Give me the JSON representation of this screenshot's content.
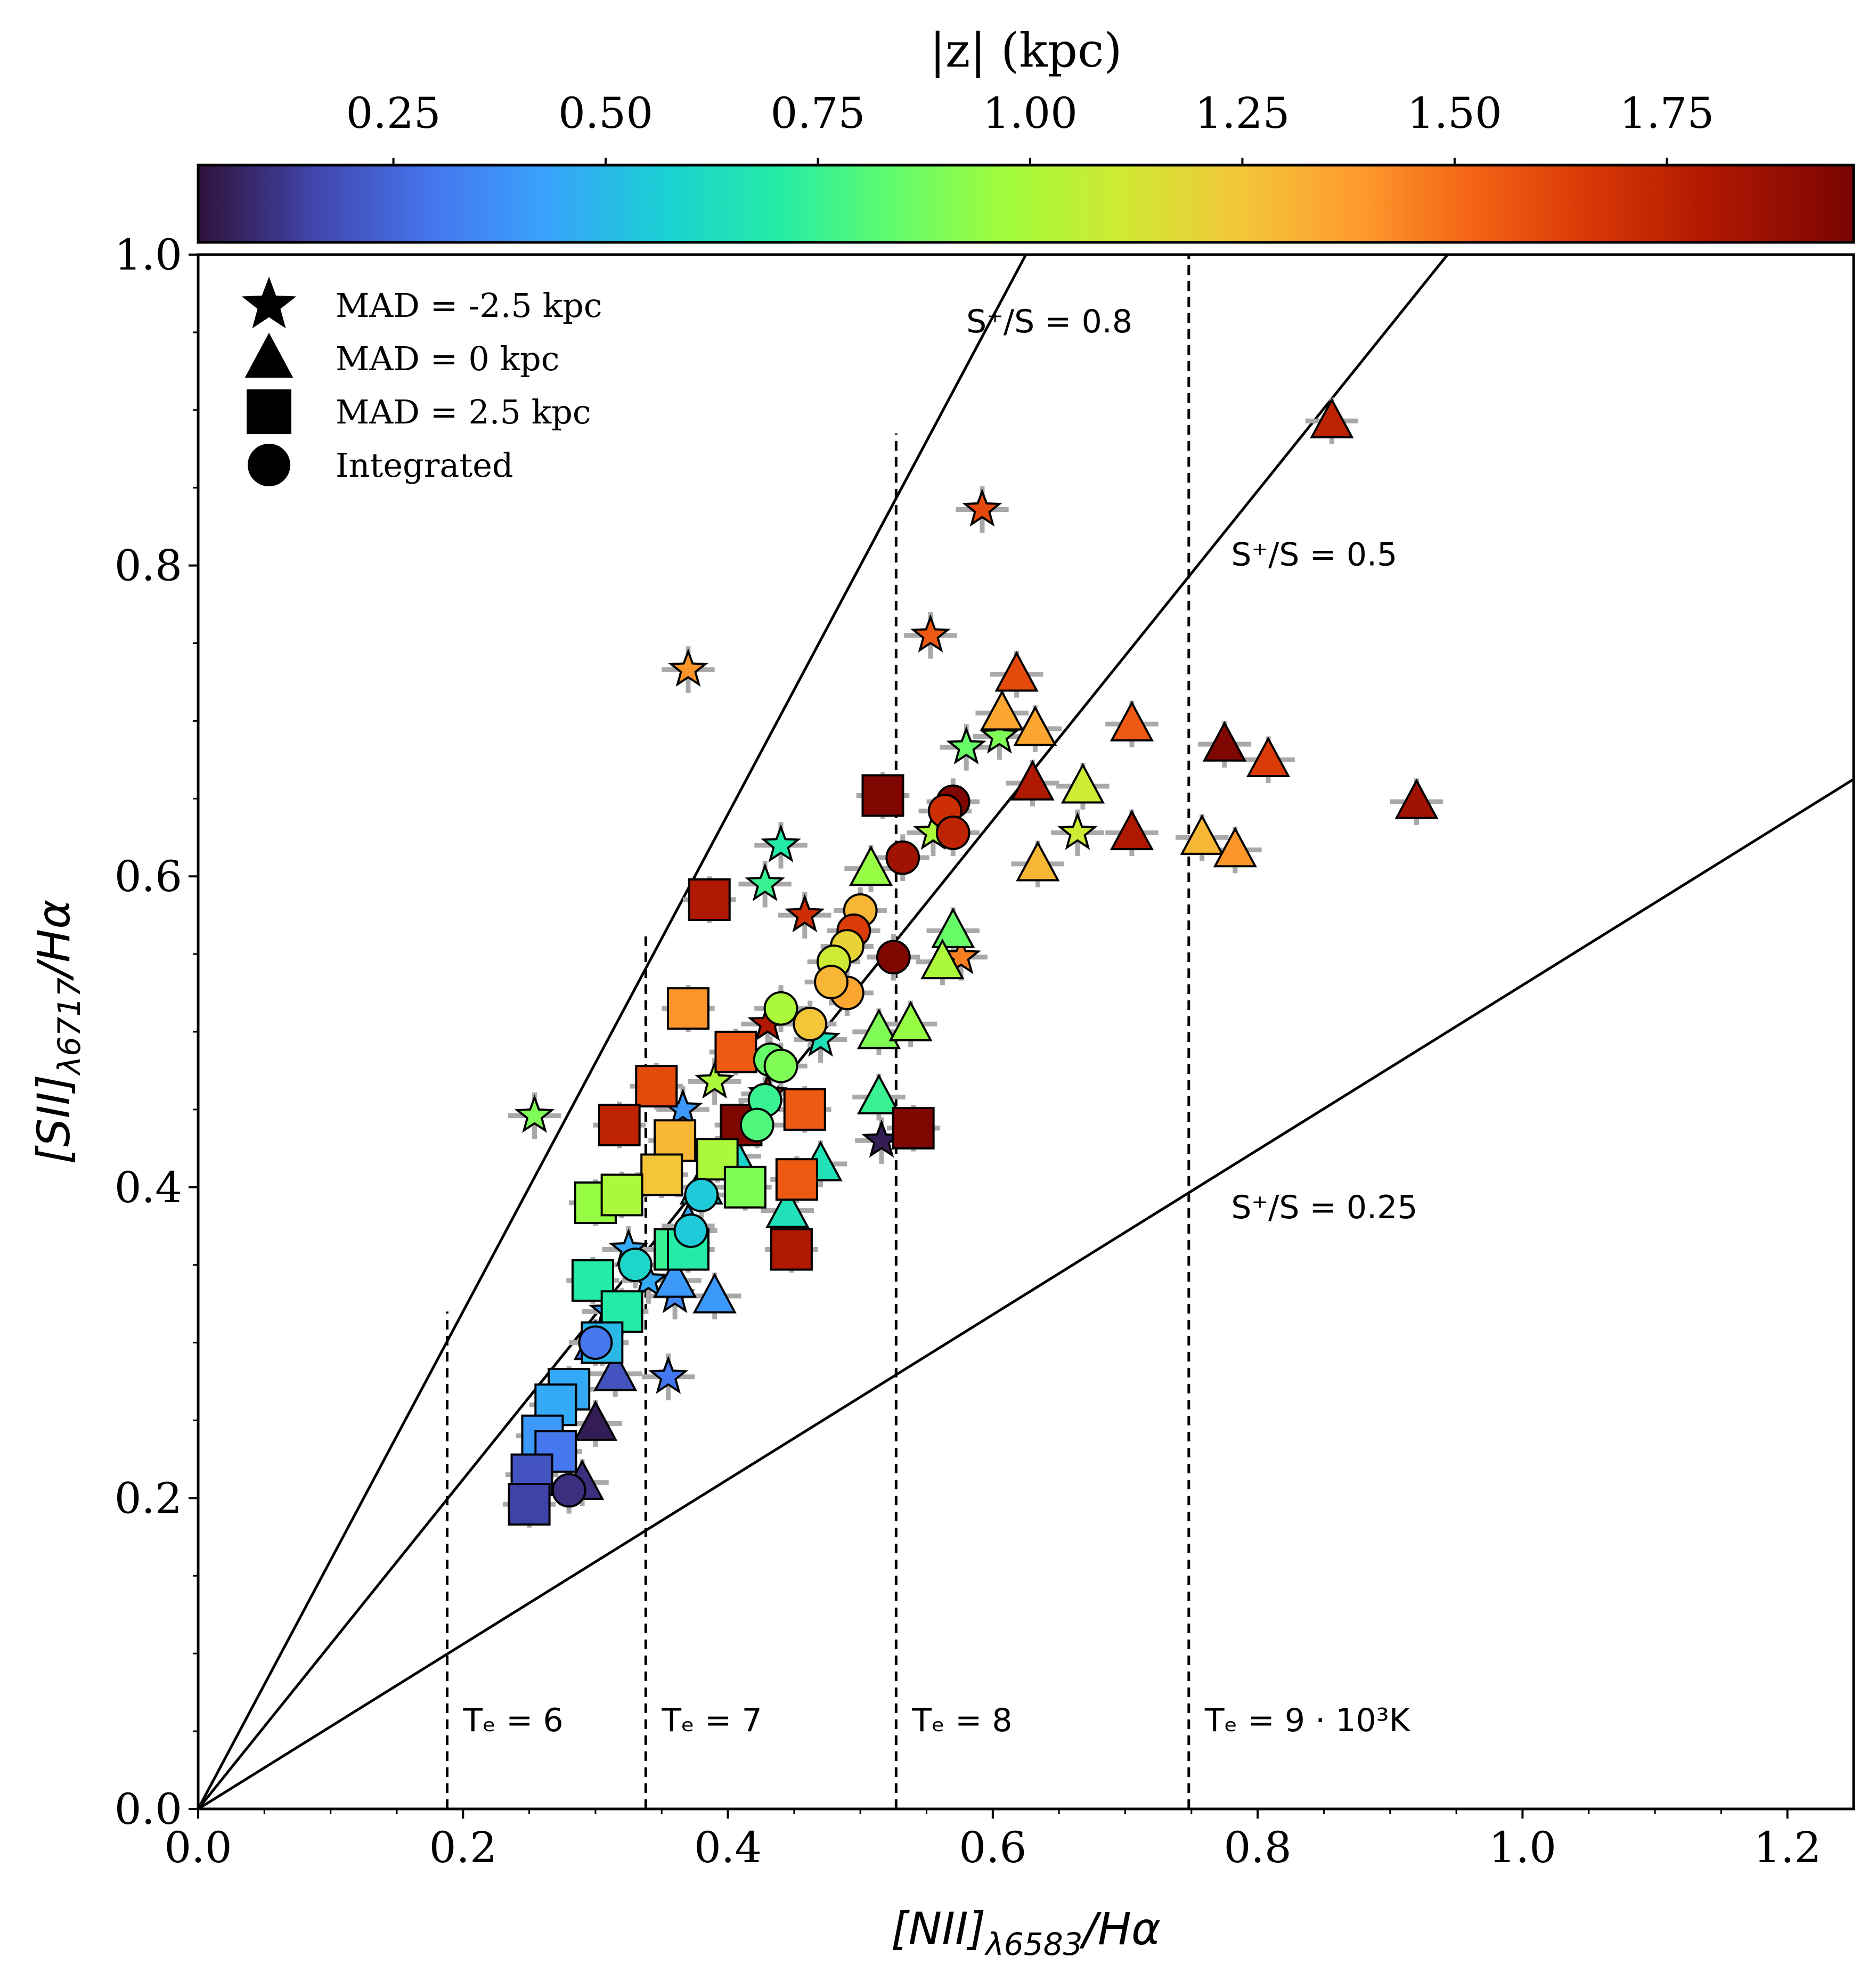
{
  "chart_data": {
    "type": "scatter",
    "xlabel_main": "[NII]",
    "xlabel_sub": "λ6583",
    "xlabel_tail": "/Hα",
    "ylabel_main": "[SII]",
    "ylabel_sub": "λ6717",
    "ylabel_tail": "/Hα",
    "xlim": [
      0.0,
      1.25
    ],
    "ylim": [
      0.0,
      1.0
    ],
    "xticks": [
      "0.0",
      "0.2",
      "0.4",
      "0.6",
      "0.8",
      "1.0",
      "1.2"
    ],
    "xtick_values": [
      0.0,
      0.2,
      0.4,
      0.6,
      0.8,
      1.0,
      1.2
    ],
    "yticks": [
      "0.0",
      "0.2",
      "0.4",
      "0.6",
      "0.8",
      "1.0"
    ],
    "ytick_values": [
      0.0,
      0.2,
      0.4,
      0.6,
      0.8,
      1.0
    ],
    "colorbar": {
      "label": "|z| (kpc)",
      "range": [
        0.02,
        1.97
      ],
      "tick_values": [
        0.25,
        0.5,
        0.75,
        1.0,
        1.25,
        1.5,
        1.75
      ],
      "ticks": [
        "0.25",
        "0.50",
        "0.75",
        "1.00",
        "1.25",
        "1.50",
        "1.75"
      ],
      "colormap": "turbo"
    },
    "legend": {
      "placement": "top-left",
      "entries": [
        {
          "marker": "star",
          "label": "MAD = -2.5 kpc"
        },
        {
          "marker": "triangle",
          "label": "MAD = 0 kpc"
        },
        {
          "marker": "square",
          "label": "MAD = 2.5 kpc"
        },
        {
          "marker": "circle",
          "label": "Integrated"
        }
      ]
    },
    "ratio_lines": [
      {
        "slope": 1.6,
        "label": "S⁺/S = 0.8",
        "label_at": [
          0.58,
          0.95
        ]
      },
      {
        "slope": 1.06,
        "label": "S⁺/S = 0.5",
        "label_at": [
          0.78,
          0.8
        ]
      },
      {
        "slope": 0.53,
        "label": "S⁺/S = 0.25",
        "label_at": [
          0.78,
          0.38
        ]
      }
    ],
    "temperature_lines": [
      {
        "x": 0.188,
        "ymax": 0.32,
        "label": "Tₑ = 6"
      },
      {
        "x": 0.338,
        "ymax": 0.565,
        "label": "Tₑ = 7"
      },
      {
        "x": 0.527,
        "ymax": 0.885,
        "label": "Tₑ = 8"
      },
      {
        "x": 0.748,
        "ymax": 1.0,
        "label": "Tₑ = 9 · 10³K"
      }
    ],
    "series": [
      {
        "marker": "star",
        "points": [
          [
            0.37,
            0.733,
            1.4
          ],
          [
            0.592,
            0.836,
            1.6
          ],
          [
            0.553,
            0.755,
            1.55
          ],
          [
            0.254,
            0.446,
            0.9
          ],
          [
            0.44,
            0.62,
            0.7
          ],
          [
            0.428,
            0.595,
            0.75
          ],
          [
            0.458,
            0.575,
            1.7
          ],
          [
            0.58,
            0.683,
            0.85
          ],
          [
            0.605,
            0.69,
            0.9
          ],
          [
            0.555,
            0.628,
            1.0
          ],
          [
            0.664,
            0.628,
            1.1
          ],
          [
            0.576,
            0.548,
            1.45
          ],
          [
            0.43,
            0.505,
            1.8
          ],
          [
            0.39,
            0.468,
            1.0
          ],
          [
            0.43,
            0.46,
            1.9
          ],
          [
            0.516,
            0.43,
            0.05
          ],
          [
            0.366,
            0.45,
            0.4
          ],
          [
            0.325,
            0.36,
            0.45
          ],
          [
            0.355,
            0.278,
            0.3
          ],
          [
            0.36,
            0.33,
            0.35
          ],
          [
            0.34,
            0.34,
            0.45
          ],
          [
            0.47,
            0.495,
            0.65
          ],
          [
            0.31,
            0.32,
            0.4
          ]
        ]
      },
      {
        "marker": "triangle",
        "points": [
          [
            0.856,
            0.893,
            1.75
          ],
          [
            0.618,
            0.73,
            1.6
          ],
          [
            0.607,
            0.705,
            1.35
          ],
          [
            0.632,
            0.695,
            1.35
          ],
          [
            0.705,
            0.698,
            1.55
          ],
          [
            0.775,
            0.685,
            1.95
          ],
          [
            0.808,
            0.675,
            1.65
          ],
          [
            0.92,
            0.648,
            1.85
          ],
          [
            0.63,
            0.66,
            1.8
          ],
          [
            0.668,
            0.658,
            1.1
          ],
          [
            0.705,
            0.628,
            1.8
          ],
          [
            0.758,
            0.625,
            1.3
          ],
          [
            0.783,
            0.617,
            1.4
          ],
          [
            0.634,
            0.608,
            1.3
          ],
          [
            0.508,
            0.605,
            0.95
          ],
          [
            0.57,
            0.565,
            0.85
          ],
          [
            0.562,
            0.545,
            1.0
          ],
          [
            0.514,
            0.5,
            0.9
          ],
          [
            0.538,
            0.505,
            0.95
          ],
          [
            0.514,
            0.458,
            0.75
          ],
          [
            0.47,
            0.415,
            0.65
          ],
          [
            0.445,
            0.385,
            0.65
          ],
          [
            0.39,
            0.33,
            0.4
          ],
          [
            0.37,
            0.375,
            0.45
          ],
          [
            0.36,
            0.34,
            0.4
          ],
          [
            0.3,
            0.248,
            0.05
          ],
          [
            0.29,
            0.21,
            0.1
          ],
          [
            0.3,
            0.3,
            0.3
          ],
          [
            0.315,
            0.28,
            0.2
          ],
          [
            0.405,
            0.42,
            0.6
          ],
          [
            0.38,
            0.4,
            0.55
          ]
        ]
      },
      {
        "marker": "square",
        "points": [
          [
            0.517,
            0.652,
            1.95
          ],
          [
            0.386,
            0.585,
            1.8
          ],
          [
            0.37,
            0.515,
            1.4
          ],
          [
            0.406,
            0.487,
            1.55
          ],
          [
            0.346,
            0.465,
            1.6
          ],
          [
            0.318,
            0.44,
            1.75
          ],
          [
            0.458,
            0.45,
            1.55
          ],
          [
            0.41,
            0.44,
            1.95
          ],
          [
            0.54,
            0.438,
            1.95
          ],
          [
            0.36,
            0.43,
            1.3
          ],
          [
            0.35,
            0.408,
            1.25
          ],
          [
            0.392,
            0.418,
            1.0
          ],
          [
            0.413,
            0.4,
            0.9
          ],
          [
            0.452,
            0.405,
            1.55
          ],
          [
            0.3,
            0.39,
            0.95
          ],
          [
            0.32,
            0.395,
            1.0
          ],
          [
            0.36,
            0.36,
            0.75
          ],
          [
            0.448,
            0.36,
            1.8
          ],
          [
            0.37,
            0.36,
            0.7
          ],
          [
            0.298,
            0.34,
            0.7
          ],
          [
            0.32,
            0.32,
            0.7
          ],
          [
            0.305,
            0.3,
            0.5
          ],
          [
            0.28,
            0.27,
            0.45
          ],
          [
            0.27,
            0.26,
            0.45
          ],
          [
            0.26,
            0.24,
            0.4
          ],
          [
            0.27,
            0.23,
            0.3
          ],
          [
            0.252,
            0.215,
            0.2
          ],
          [
            0.25,
            0.196,
            0.15
          ]
        ]
      },
      {
        "marker": "circle",
        "points": [
          [
            0.57,
            0.648,
            1.95
          ],
          [
            0.564,
            0.642,
            1.7
          ],
          [
            0.57,
            0.628,
            1.75
          ],
          [
            0.532,
            0.612,
            1.85
          ],
          [
            0.5,
            0.578,
            1.3
          ],
          [
            0.495,
            0.565,
            1.65
          ],
          [
            0.49,
            0.555,
            1.2
          ],
          [
            0.48,
            0.545,
            1.1
          ],
          [
            0.525,
            0.548,
            1.95
          ],
          [
            0.49,
            0.525,
            1.35
          ],
          [
            0.478,
            0.532,
            1.3
          ],
          [
            0.462,
            0.505,
            1.25
          ],
          [
            0.44,
            0.515,
            1.0
          ],
          [
            0.432,
            0.482,
            0.85
          ],
          [
            0.44,
            0.478,
            0.9
          ],
          [
            0.428,
            0.456,
            0.75
          ],
          [
            0.422,
            0.44,
            0.8
          ],
          [
            0.38,
            0.395,
            0.55
          ],
          [
            0.372,
            0.372,
            0.55
          ],
          [
            0.3,
            0.3,
            0.3
          ],
          [
            0.28,
            0.205,
            0.1
          ],
          [
            0.33,
            0.35,
            0.6
          ]
        ]
      }
    ]
  }
}
